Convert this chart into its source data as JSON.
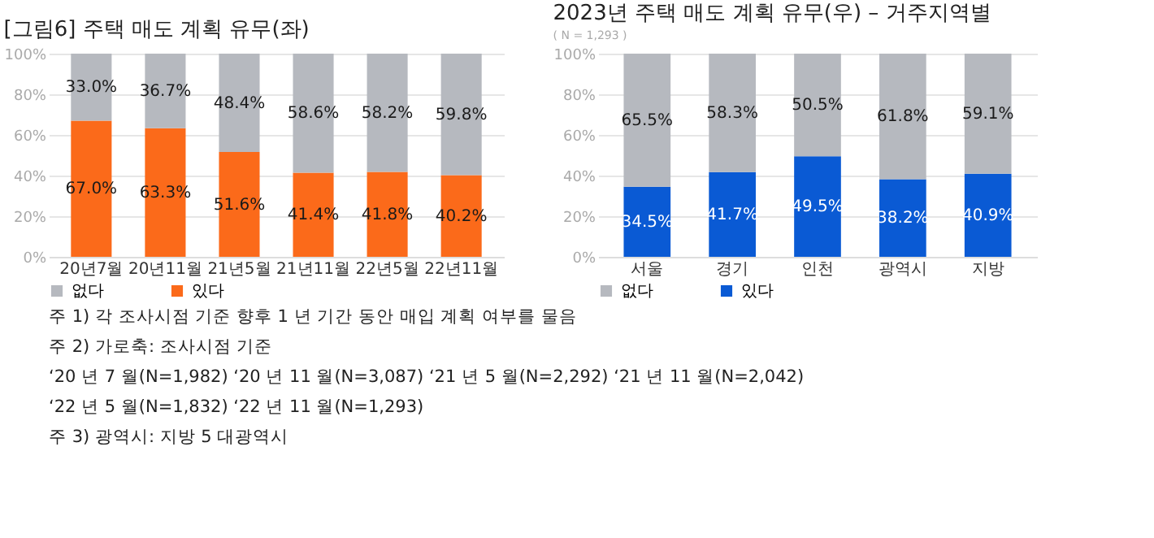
{
  "chart_data": [
    {
      "type": "bar",
      "title": "[그림6] 주택 매도 계획 유무(좌)",
      "stacked": true,
      "categories": [
        "20년7월",
        "20년11월",
        "21년5월",
        "21년11월",
        "22년5월",
        "22년11월"
      ],
      "series": [
        {
          "name": "있다",
          "color": "#fb6a1a",
          "values": [
            67.0,
            63.3,
            51.6,
            41.4,
            41.8,
            40.2
          ],
          "value_labels": [
            "67.0%",
            "63.3%",
            "51.6%",
            "41.4%",
            "41.8%",
            "40.2%"
          ]
        },
        {
          "name": "없다",
          "color": "#b6b9bf",
          "values": [
            33.0,
            36.7,
            48.4,
            58.6,
            58.2,
            59.8
          ],
          "value_labels": [
            "33.0%",
            "36.7%",
            "48.4%",
            "58.6%",
            "58.2%",
            "59.8%"
          ]
        }
      ],
      "ylim": [
        0,
        100
      ],
      "yticks": [
        {
          "value": 0,
          "label": "0%"
        },
        {
          "value": 20,
          "label": "20%"
        },
        {
          "value": 40,
          "label": "40%"
        },
        {
          "value": 60,
          "label": "60%"
        },
        {
          "value": 80,
          "label": "80%"
        },
        {
          "value": 100,
          "label": "100%"
        }
      ],
      "grid": "y",
      "legend": "bottom",
      "annotations": [
        "주 1) 각 조사시점 기준 향후 1 년 기간 동안 매입 계획 여부를 물음",
        "주 2) 가로축: 조사시점 기준",
        "‘20 년 7 월(N=1,982) ‘20 년 11 월(N=3,087) ‘21 년 5 월(N=2,292) ‘21 년  11 월(N=2,042)",
        "‘22 년 5 월(N=1,832) ‘22 년 11 월(N=1,293)",
        "주 3) 광역시: 지방 5 대광역시"
      ]
    },
    {
      "type": "bar",
      "title": "2023년 주택 매도 계획 유무(우) – 거주지역별",
      "subtitle": "( N = 1,293 )",
      "stacked": true,
      "categories": [
        "서울",
        "경기",
        "인천",
        "광역시",
        "지방"
      ],
      "series": [
        {
          "name": "있다",
          "color": "#0a5ad4",
          "values": [
            34.5,
            41.7,
            49.5,
            38.2,
            40.9
          ],
          "value_labels": [
            "34.5%",
            "41.7%",
            "49.5%",
            "38.2%",
            "40.9%"
          ]
        },
        {
          "name": "없다",
          "color": "#b6b9bf",
          "values": [
            65.5,
            58.3,
            50.5,
            61.8,
            59.1
          ],
          "value_labels": [
            "65.5%",
            "58.3%",
            "50.5%",
            "61.8%",
            "59.1%"
          ]
        }
      ],
      "ylim": [
        0,
        100
      ],
      "yticks": [
        {
          "value": 0,
          "label": "0%"
        },
        {
          "value": 20,
          "label": "20%"
        },
        {
          "value": 40,
          "label": "40%"
        },
        {
          "value": 60,
          "label": "60%"
        },
        {
          "value": 80,
          "label": "80%"
        },
        {
          "value": 100,
          "label": "100%"
        }
      ],
      "grid": "y",
      "legend": "bottom"
    }
  ]
}
